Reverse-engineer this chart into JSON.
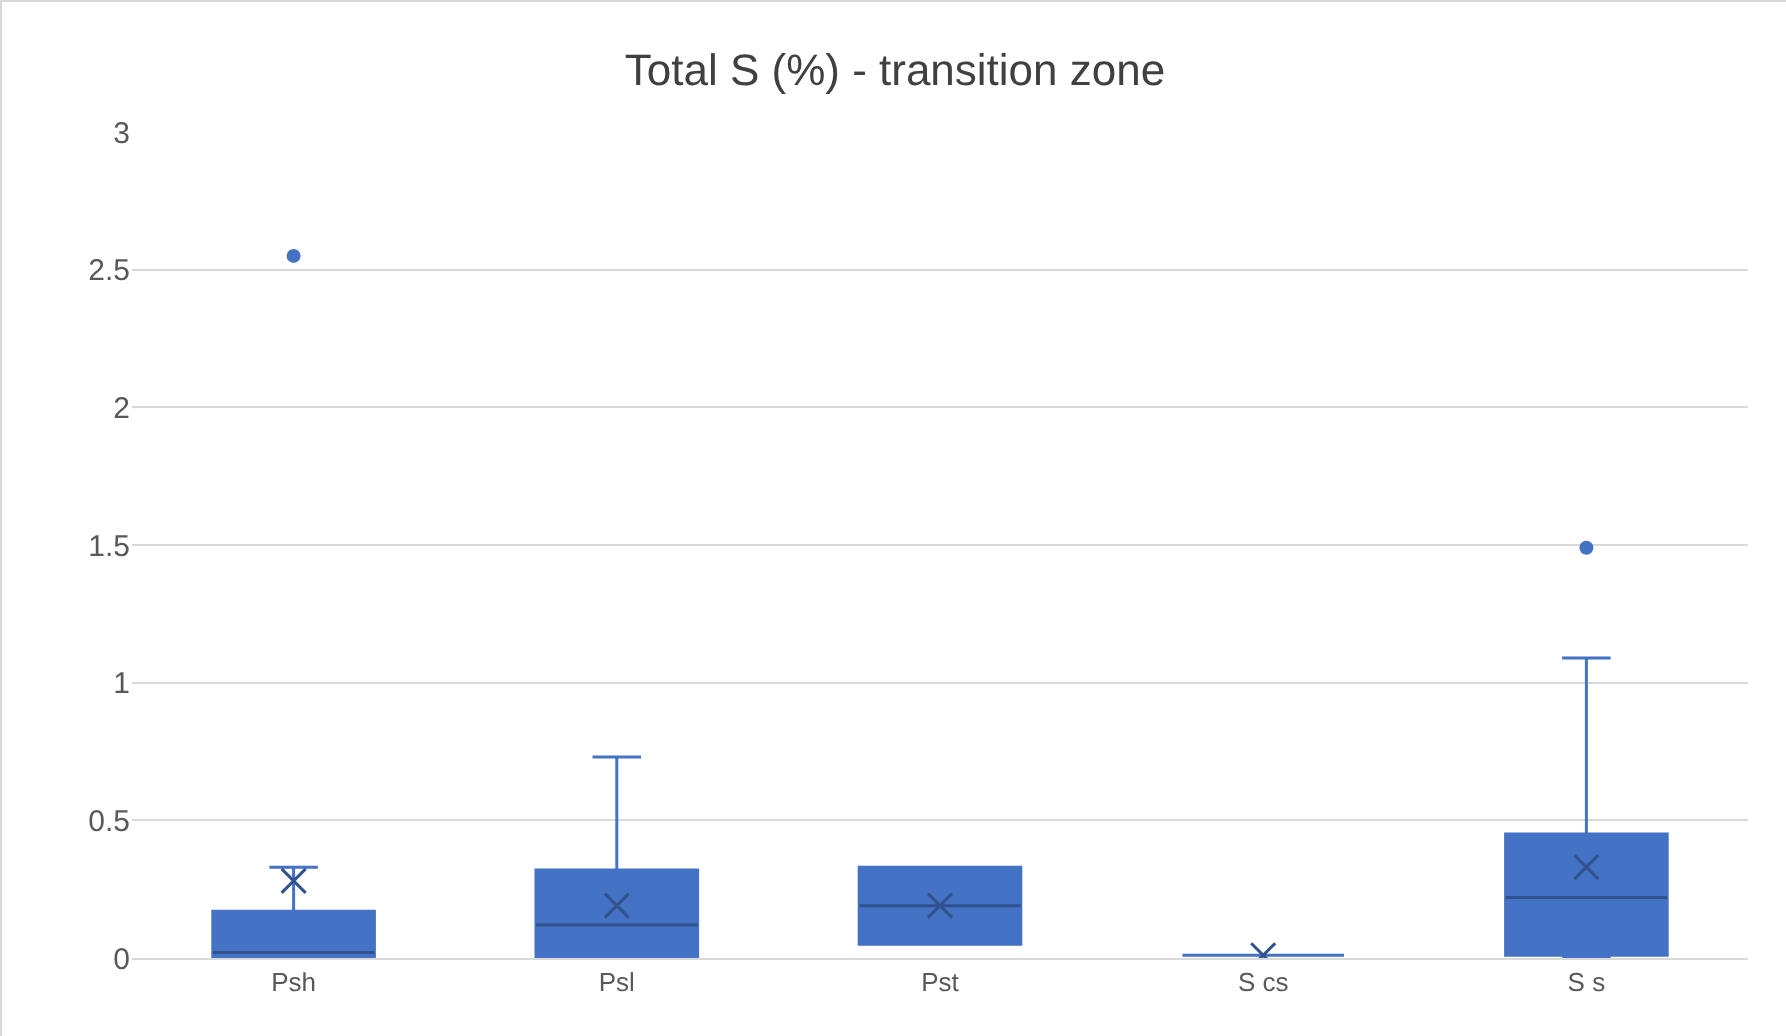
{
  "chart_data": {
    "type": "box",
    "title": "Total S (%) - transition zone",
    "categories": [
      "Psh",
      "Psl",
      "Pst",
      "S cs",
      "S s"
    ],
    "color": "#4472c4",
    "boxes": [
      {
        "low": 0,
        "q1": 0,
        "median": 0.02,
        "q3": 0.17,
        "high": 0.33,
        "mean": 0.28,
        "outliers": [
          2.55
        ]
      },
      {
        "low": 0,
        "q1": 0,
        "median": 0.12,
        "q3": 0.32,
        "high": 0.73,
        "mean": 0.19
      },
      {
        "low": 0.05,
        "q1": 0.05,
        "median": 0.19,
        "q3": 0.33,
        "high": 0.33,
        "mean": 0.19
      },
      {
        "low": 0.01,
        "q1": 0.01,
        "median": 0.01,
        "q3": 0.01,
        "high": 0.01,
        "mean": 0.01
      },
      {
        "low": 0,
        "q1": 0.01,
        "median": 0.22,
        "q3": 0.45,
        "high": 1.09,
        "mean": 0.33,
        "outliers": [
          1.49
        ]
      }
    ],
    "ylim": [
      0,
      3
    ],
    "yticks": [
      0,
      0.5,
      1,
      1.5,
      2,
      2.5,
      3
    ],
    "grid": "y"
  }
}
